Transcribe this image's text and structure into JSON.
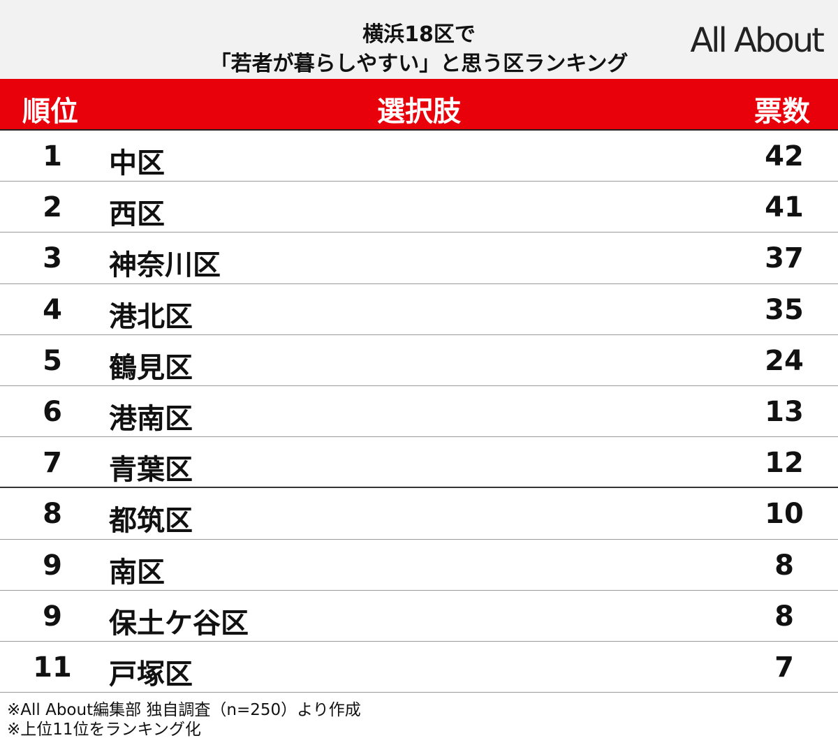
{
  "header": {
    "title_lines": [
      "横浜18区で",
      "「若者が暮らしやすい」と思う区ランキング"
    ],
    "logo": "All About"
  },
  "table": {
    "columns": [
      "順位",
      "選択肢",
      "票数"
    ],
    "rows": [
      [
        1,
        "中区",
        42
      ],
      [
        2,
        "西区",
        41
      ],
      [
        3,
        "神奈川区",
        37
      ],
      [
        4,
        "港北区",
        35
      ],
      [
        5,
        "鶴見区",
        24
      ],
      [
        6,
        "港南区",
        13
      ],
      [
        7,
        "青葉区",
        12
      ],
      [
        8,
        "都筑区",
        10
      ],
      [
        9,
        "南区",
        8
      ],
      [
        9,
        "保土ケ谷区",
        8
      ],
      [
        11,
        "戸塚区",
        7
      ]
    ]
  },
  "notes": [
    "※All About編集部 独自調査（n=250）より作成",
    "※上位11位をランキング化"
  ]
}
